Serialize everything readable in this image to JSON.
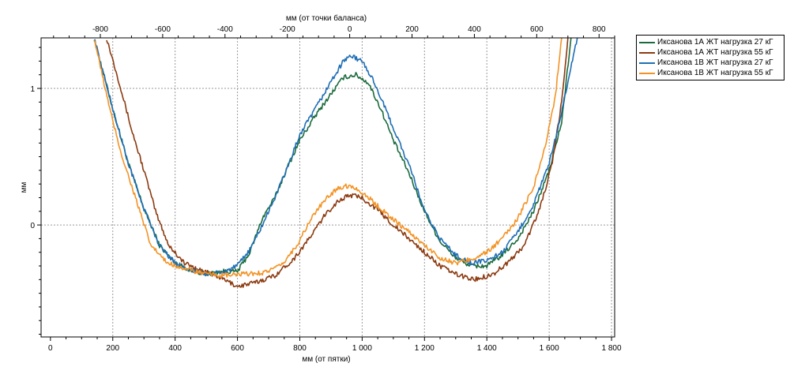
{
  "chart_data": {
    "type": "line",
    "title": "",
    "xlabel": "мм (от пятки)",
    "x2label": "мм (от точки баланса)",
    "ylabel": "мм",
    "xlim": [
      -30,
      1810
    ],
    "x2_offset": 960,
    "ylim": [
      -0.82,
      1.37
    ],
    "x_ticks": [
      0,
      200,
      400,
      600,
      800,
      1000,
      1200,
      1400,
      1600,
      1800
    ],
    "x_tick_labels": [
      "0",
      "200",
      "400",
      "600",
      "800",
      "1 000",
      "1 200",
      "1 400",
      "1 600",
      "1 800"
    ],
    "x2_ticks": [
      -800,
      -600,
      -400,
      -200,
      0,
      200,
      400,
      600,
      800
    ],
    "x2_tick_labels": [
      "-800",
      "-600",
      "-400",
      "-200",
      "0",
      "200",
      "400",
      "600",
      "800"
    ],
    "y_ticks": [
      0,
      1
    ],
    "y_tick_labels": [
      "0",
      "1"
    ],
    "grid": true,
    "legend_position": "right",
    "series": [
      {
        "name": "Иксанова 1А ЖТ нагрузка 27 кГ",
        "color": "#1a6b3c",
        "points": [
          [
            140,
            1.37
          ],
          [
            200,
            0.85
          ],
          [
            250,
            0.45
          ],
          [
            300,
            0.12
          ],
          [
            350,
            -0.15
          ],
          [
            400,
            -0.28
          ],
          [
            450,
            -0.33
          ],
          [
            500,
            -0.36
          ],
          [
            550,
            -0.34
          ],
          [
            600,
            -0.34
          ],
          [
            640,
            -0.2
          ],
          [
            680,
            0.05
          ],
          [
            720,
            0.2
          ],
          [
            760,
            0.42
          ],
          [
            800,
            0.62
          ],
          [
            850,
            0.8
          ],
          [
            900,
            0.96
          ],
          [
            940,
            1.08
          ],
          [
            980,
            1.1
          ],
          [
            1020,
            1.04
          ],
          [
            1060,
            0.85
          ],
          [
            1100,
            0.62
          ],
          [
            1150,
            0.38
          ],
          [
            1200,
            0.1
          ],
          [
            1250,
            -0.12
          ],
          [
            1300,
            -0.24
          ],
          [
            1350,
            -0.3
          ],
          [
            1400,
            -0.3
          ],
          [
            1450,
            -0.22
          ],
          [
            1500,
            -0.1
          ],
          [
            1550,
            0.1
          ],
          [
            1600,
            0.4
          ],
          [
            1640,
            0.75
          ],
          [
            1670,
            1.37
          ]
        ]
      },
      {
        "name": "Иксанова 1А ЖТ нагрузка 55 кГ",
        "color": "#8b3a10",
        "points": [
          [
            180,
            1.37
          ],
          [
            220,
            1.05
          ],
          [
            260,
            0.7
          ],
          [
            300,
            0.4
          ],
          [
            340,
            0.08
          ],
          [
            380,
            -0.15
          ],
          [
            430,
            -0.28
          ],
          [
            480,
            -0.33
          ],
          [
            540,
            -0.38
          ],
          [
            600,
            -0.45
          ],
          [
            660,
            -0.42
          ],
          [
            720,
            -0.37
          ],
          [
            780,
            -0.25
          ],
          [
            830,
            -0.1
          ],
          [
            880,
            0.07
          ],
          [
            920,
            0.17
          ],
          [
            960,
            0.22
          ],
          [
            1000,
            0.2
          ],
          [
            1050,
            0.11
          ],
          [
            1100,
            0.0
          ],
          [
            1150,
            -0.1
          ],
          [
            1200,
            -0.2
          ],
          [
            1250,
            -0.3
          ],
          [
            1300,
            -0.36
          ],
          [
            1360,
            -0.4
          ],
          [
            1420,
            -0.36
          ],
          [
            1470,
            -0.27
          ],
          [
            1520,
            -0.15
          ],
          [
            1570,
            0.12
          ],
          [
            1610,
            0.45
          ],
          [
            1640,
            0.9
          ],
          [
            1660,
            1.37
          ]
        ]
      },
      {
        "name": "Иксанова 1В ЖТ нагрузка 27 кГ",
        "color": "#1f6eb5",
        "points": [
          [
            140,
            1.37
          ],
          [
            200,
            0.85
          ],
          [
            250,
            0.45
          ],
          [
            300,
            0.12
          ],
          [
            350,
            -0.15
          ],
          [
            400,
            -0.28
          ],
          [
            450,
            -0.33
          ],
          [
            500,
            -0.36
          ],
          [
            550,
            -0.35
          ],
          [
            600,
            -0.3
          ],
          [
            640,
            -0.18
          ],
          [
            680,
            0.0
          ],
          [
            720,
            0.2
          ],
          [
            760,
            0.42
          ],
          [
            800,
            0.66
          ],
          [
            850,
            0.85
          ],
          [
            900,
            1.05
          ],
          [
            940,
            1.2
          ],
          [
            960,
            1.24
          ],
          [
            1000,
            1.2
          ],
          [
            1040,
            1.04
          ],
          [
            1080,
            0.82
          ],
          [
            1120,
            0.6
          ],
          [
            1160,
            0.38
          ],
          [
            1200,
            0.1
          ],
          [
            1250,
            -0.1
          ],
          [
            1300,
            -0.22
          ],
          [
            1350,
            -0.28
          ],
          [
            1400,
            -0.26
          ],
          [
            1450,
            -0.2
          ],
          [
            1500,
            -0.05
          ],
          [
            1550,
            0.15
          ],
          [
            1600,
            0.45
          ],
          [
            1630,
            0.72
          ],
          [
            1660,
            1.05
          ],
          [
            1690,
            1.37
          ]
        ]
      },
      {
        "name": "Иксанова 1В ЖТ нагрузка 55 кГ",
        "color": "#f39325",
        "points": [
          [
            140,
            1.37
          ],
          [
            190,
            0.85
          ],
          [
            230,
            0.5
          ],
          [
            270,
            0.22
          ],
          [
            320,
            -0.14
          ],
          [
            370,
            -0.27
          ],
          [
            430,
            -0.32
          ],
          [
            500,
            -0.36
          ],
          [
            560,
            -0.37
          ],
          [
            620,
            -0.36
          ],
          [
            680,
            -0.35
          ],
          [
            740,
            -0.3
          ],
          [
            790,
            -0.15
          ],
          [
            840,
            0.06
          ],
          [
            880,
            0.18
          ],
          [
            920,
            0.27
          ],
          [
            960,
            0.29
          ],
          [
            1000,
            0.24
          ],
          [
            1050,
            0.14
          ],
          [
            1100,
            0.04
          ],
          [
            1150,
            -0.05
          ],
          [
            1200,
            -0.15
          ],
          [
            1250,
            -0.24
          ],
          [
            1300,
            -0.28
          ],
          [
            1350,
            -0.25
          ],
          [
            1400,
            -0.2
          ],
          [
            1450,
            -0.1
          ],
          [
            1500,
            0.05
          ],
          [
            1550,
            0.28
          ],
          [
            1590,
            0.6
          ],
          [
            1620,
            0.95
          ],
          [
            1640,
            1.37
          ]
        ]
      }
    ]
  }
}
